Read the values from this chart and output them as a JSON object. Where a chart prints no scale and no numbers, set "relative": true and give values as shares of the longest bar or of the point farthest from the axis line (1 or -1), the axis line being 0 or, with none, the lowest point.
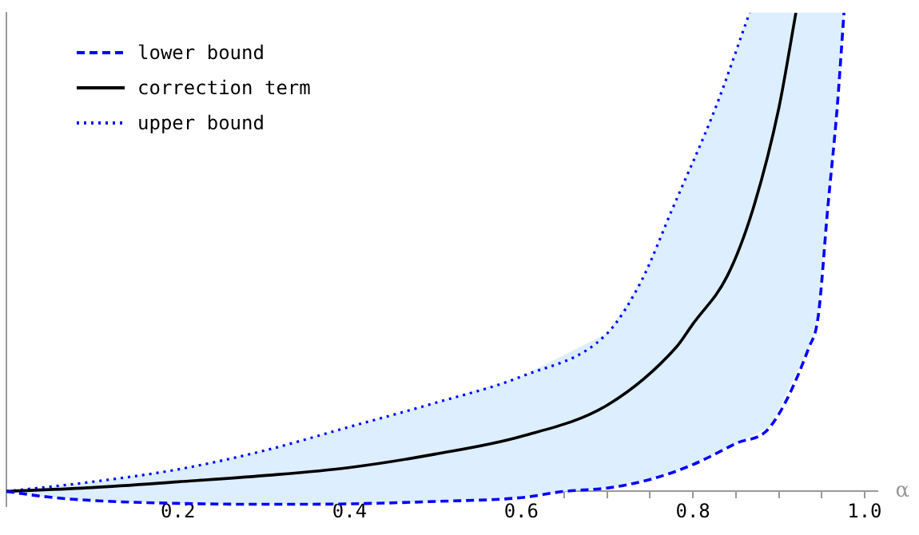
{
  "chart_data": {
    "type": "line",
    "relative": true,
    "xlabel": "α",
    "xlim": [
      0,
      1.015
    ],
    "xticks": [
      {
        "value": 0,
        "label": null
      },
      {
        "value": 0.05,
        "label": null
      },
      {
        "value": 0.1,
        "label": null
      },
      {
        "value": 0.15,
        "label": null
      },
      {
        "value": 0.2,
        "label": "0.2"
      },
      {
        "value": 0.25,
        "label": null
      },
      {
        "value": 0.3,
        "label": null
      },
      {
        "value": 0.35,
        "label": null
      },
      {
        "value": 0.4,
        "label": "0.4"
      },
      {
        "value": 0.45,
        "label": null
      },
      {
        "value": 0.5,
        "label": null
      },
      {
        "value": 0.55,
        "label": null
      },
      {
        "value": 0.6,
        "label": "0.6"
      },
      {
        "value": 0.65,
        "label": null
      },
      {
        "value": 0.7,
        "label": null
      },
      {
        "value": 0.75,
        "label": null
      },
      {
        "value": 0.8,
        "label": "0.8"
      },
      {
        "value": 0.85,
        "label": null
      },
      {
        "value": 0.9,
        "label": null
      },
      {
        "value": 0.95,
        "label": null
      },
      {
        "value": 1.0,
        "label": "1.0"
      }
    ],
    "grid": false,
    "legend": "top left",
    "marker": "none",
    "series": [
      {
        "name": "lower bound",
        "color": "#0000ff",
        "line_style": "dashed",
        "x": [
          0,
          0.05,
          0.1,
          0.2,
          0.3,
          0.4,
          0.5,
          0.6,
          0.65,
          0.7,
          0.75,
          0.8,
          0.85,
          0.89,
          0.935,
          0.946,
          0.957,
          0.968,
          0.976
        ],
        "values": [
          0,
          -0.012,
          -0.019,
          -0.025,
          -0.027,
          -0.026,
          -0.021,
          -0.013,
          0,
          0.007,
          0.025,
          0.056,
          0.1,
          0.135,
          0.3,
          0.366,
          0.59,
          0.8,
          1
        ]
      },
      {
        "name": "correction term",
        "color": "#000000",
        "line_style": "solid",
        "x": [
          0,
          0.1,
          0.2,
          0.3,
          0.4,
          0.5,
          0.6,
          0.7,
          0.78,
          0.8,
          0.84,
          0.87,
          0.9,
          0.92
        ],
        "values": [
          0,
          0.008,
          0.02,
          0.033,
          0.05,
          0.078,
          0.115,
          0.18,
          0.3,
          0.35,
          0.45,
          0.59,
          0.8,
          1
        ]
      },
      {
        "name": "upper bound",
        "color": "#0000ff",
        "line_style": "dotted",
        "x": [
          0,
          0.1,
          0.2,
          0.3,
          0.4,
          0.5,
          0.6,
          0.7,
          0.74,
          0.776,
          0.826,
          0.866
        ],
        "values": [
          0,
          0.02,
          0.046,
          0.085,
          0.135,
          0.185,
          0.24,
          0.33,
          0.44,
          0.59,
          0.8,
          1
        ]
      }
    ]
  }
}
